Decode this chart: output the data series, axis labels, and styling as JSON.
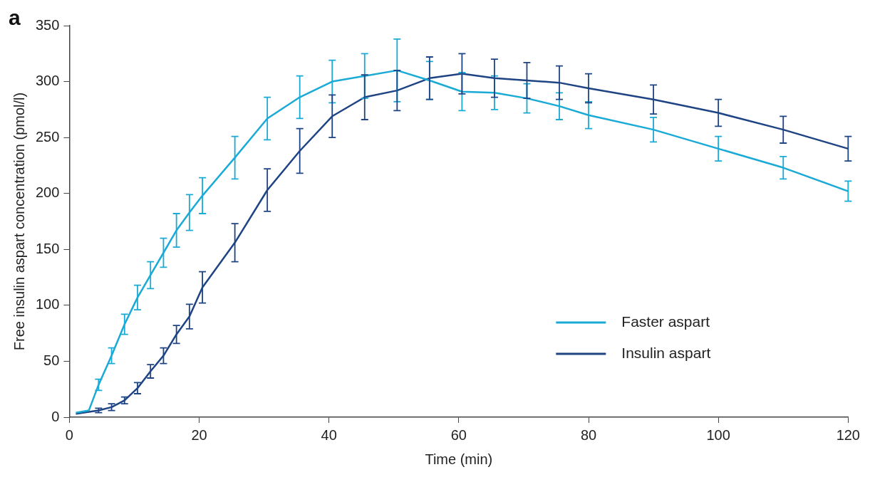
{
  "chart_data": {
    "type": "line",
    "xlabel": "Time (min)",
    "ylabel": "Free insulin aspart concentration (pmol/l)",
    "annotations": [
      "a"
    ],
    "xlim": [
      0,
      120
    ],
    "xticks": [
      0,
      20,
      40,
      60,
      80,
      100,
      120
    ],
    "ylim": [
      0,
      350
    ],
    "yticks": [
      0,
      50,
      100,
      150,
      200,
      250,
      300,
      350
    ],
    "grid": false,
    "legend": "bottom right",
    "marker": "none",
    "line_style": "solid",
    "series": [
      {
        "name": "Faster aspart",
        "color": "#1aaad6",
        "x": [
          1,
          3,
          4.5,
          6.5,
          8.5,
          10.5,
          12.5,
          14.5,
          16.5,
          18.5,
          20.5,
          25.5,
          30.5,
          35.5,
          40.5,
          45.5,
          50.5,
          55.5,
          60.5,
          65.5,
          70.5,
          75.5,
          80,
          90,
          100,
          110,
          120
        ],
        "values": [
          4,
          6,
          29,
          55,
          83,
          107,
          127,
          147,
          167,
          183,
          198,
          232,
          267,
          286,
          300,
          305,
          310,
          301,
          291,
          290,
          285,
          278,
          270,
          257,
          240,
          223,
          202
        ],
        "errors": [
          null,
          null,
          5,
          7,
          9,
          11,
          12,
          13,
          15,
          16,
          16,
          19,
          19,
          19,
          19,
          20,
          28,
          17,
          17,
          15,
          13,
          12,
          12,
          11,
          11,
          10,
          9
        ]
      },
      {
        "name": "Insulin aspart",
        "color": "#1f4484",
        "x": [
          1,
          4.5,
          6.5,
          8.5,
          10.5,
          12.5,
          14.5,
          16.5,
          18.5,
          20.5,
          25.5,
          30.5,
          35.5,
          40.5,
          45.5,
          50.5,
          55.5,
          60.5,
          65.5,
          70.5,
          75.5,
          80,
          90,
          100,
          110,
          120
        ],
        "values": [
          3,
          6,
          9,
          15,
          26,
          41,
          55,
          74,
          90,
          116,
          156,
          203,
          238,
          269,
          286,
          292,
          303,
          307,
          303,
          301,
          299,
          294,
          284,
          272,
          257,
          240
        ],
        "errors": [
          null,
          2,
          3,
          3,
          5,
          6,
          7,
          8,
          11,
          14,
          17,
          19,
          20,
          19,
          20,
          18,
          19,
          18,
          17,
          16,
          15,
          13,
          13,
          12,
          12,
          11
        ]
      }
    ]
  }
}
